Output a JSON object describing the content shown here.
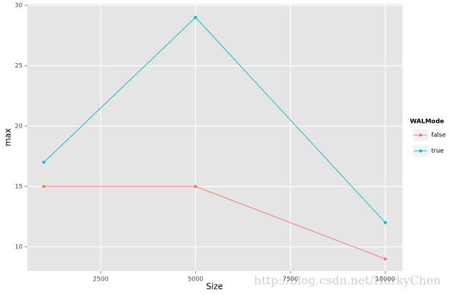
{
  "chart_data": {
    "type": "line",
    "x_label": "Size",
    "y_label": "max",
    "x": [
      1000,
      5000,
      10000
    ],
    "series": [
      {
        "name": "false",
        "color": "#F8766D",
        "values": [
          15,
          15,
          9
        ]
      },
      {
        "name": "true",
        "color": "#00BFC4",
        "values": [
          17,
          29,
          12
        ]
      }
    ],
    "xlim": [
      569,
      10450
    ],
    "ylim": [
      8,
      30.1
    ],
    "xticks": [
      2500,
      5000,
      7500,
      10000
    ],
    "yticks": [
      10,
      15,
      20,
      25,
      30
    ],
    "grid": true,
    "legend_title": "WALMode",
    "legend": "right",
    "watermark": "http://blog.csdn.net/HorkyChen"
  }
}
